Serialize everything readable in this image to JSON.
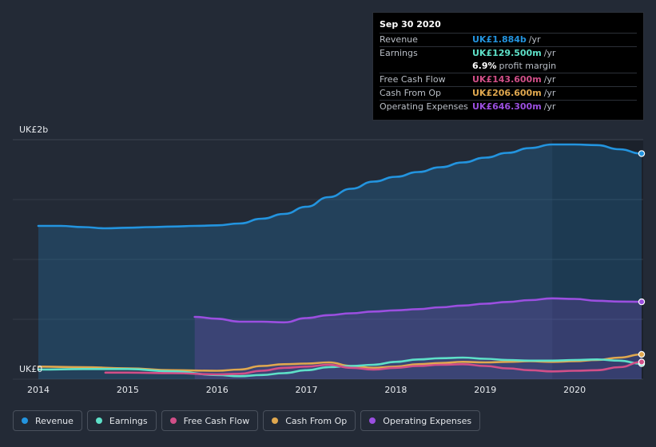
{
  "colors": {
    "revenue": "#2394df",
    "earnings": "#5ee0c8",
    "free_cash_flow": "#d14f88",
    "cash_from_op": "#e0a84f",
    "operating_expenses": "#9b4fe0"
  },
  "tooltip": {
    "date": "Sep 30 2020",
    "rows": [
      {
        "label": "Revenue",
        "value": "UK£1.884b",
        "unit": "/yr",
        "color": "#2394df"
      },
      {
        "label": "Earnings",
        "value": "UK£129.500m",
        "unit": "/yr",
        "color": "#5ee0c8"
      },
      {
        "label": "",
        "value": "6.9%",
        "unit": "profit margin",
        "color": "#ffffff"
      },
      {
        "label": "Free Cash Flow",
        "value": "UK£143.600m",
        "unit": "/yr",
        "color": "#d14f88"
      },
      {
        "label": "Cash From Op",
        "value": "UK£206.600m",
        "unit": "/yr",
        "color": "#e0a84f"
      },
      {
        "label": "Operating Expenses",
        "value": "UK£646.300m",
        "unit": "/yr",
        "color": "#9b4fe0"
      }
    ]
  },
  "legend": [
    {
      "label": "Revenue",
      "color": "#2394df"
    },
    {
      "label": "Earnings",
      "color": "#5ee0c8"
    },
    {
      "label": "Free Cash Flow",
      "color": "#d14f88"
    },
    {
      "label": "Cash From Op",
      "color": "#e0a84f"
    },
    {
      "label": "Operating Expenses",
      "color": "#9b4fe0"
    }
  ],
  "chart_data": {
    "type": "area",
    "title": "",
    "xlabel": "",
    "ylabel": "",
    "y_unit_label_top": "UK£2b",
    "y_unit_label_bottom": "UK£0",
    "ylim": [
      0,
      2.0
    ],
    "xlim": [
      2014.0,
      2020.75
    ],
    "x_ticks": [
      2014,
      2015,
      2016,
      2017,
      2018,
      2019,
      2020
    ],
    "x_tick_labels": [
      "2014",
      "2015",
      "2016",
      "2017",
      "2018",
      "2019",
      "2020"
    ],
    "highlight_from": 2019.75,
    "series": [
      {
        "name": "Revenue",
        "key": "revenue",
        "filled": true,
        "points": [
          [
            2014.0,
            1.28
          ],
          [
            2014.25,
            1.28
          ],
          [
            2014.5,
            1.27
          ],
          [
            2014.75,
            1.26
          ],
          [
            2015.0,
            1.265
          ],
          [
            2015.25,
            1.27
          ],
          [
            2015.5,
            1.275
          ],
          [
            2015.75,
            1.28
          ],
          [
            2016.0,
            1.285
          ],
          [
            2016.25,
            1.3
          ],
          [
            2016.5,
            1.34
          ],
          [
            2016.75,
            1.38
          ],
          [
            2017.0,
            1.44
          ],
          [
            2017.25,
            1.52
          ],
          [
            2017.5,
            1.59
          ],
          [
            2017.75,
            1.65
          ],
          [
            2018.0,
            1.69
          ],
          [
            2018.25,
            1.73
          ],
          [
            2018.5,
            1.77
          ],
          [
            2018.75,
            1.81
          ],
          [
            2019.0,
            1.85
          ],
          [
            2019.25,
            1.89
          ],
          [
            2019.5,
            1.93
          ],
          [
            2019.75,
            1.96
          ],
          [
            2020.0,
            1.96
          ],
          [
            2020.25,
            1.955
          ],
          [
            2020.5,
            1.92
          ],
          [
            2020.75,
            1.884
          ]
        ]
      },
      {
        "name": "Operating Expenses",
        "key": "operating_expenses",
        "filled": true,
        "points": [
          [
            2015.75,
            0.52
          ],
          [
            2016.0,
            0.505
          ],
          [
            2016.25,
            0.48
          ],
          [
            2016.5,
            0.48
          ],
          [
            2016.75,
            0.475
          ],
          [
            2017.0,
            0.51
          ],
          [
            2017.25,
            0.535
          ],
          [
            2017.5,
            0.55
          ],
          [
            2017.75,
            0.565
          ],
          [
            2018.0,
            0.575
          ],
          [
            2018.25,
            0.585
          ],
          [
            2018.5,
            0.6
          ],
          [
            2018.75,
            0.615
          ],
          [
            2019.0,
            0.63
          ],
          [
            2019.25,
            0.645
          ],
          [
            2019.5,
            0.66
          ],
          [
            2019.75,
            0.675
          ],
          [
            2020.0,
            0.67
          ],
          [
            2020.25,
            0.655
          ],
          [
            2020.5,
            0.648
          ],
          [
            2020.75,
            0.646
          ]
        ]
      },
      {
        "name": "Cash From Op",
        "key": "cash_from_op",
        "filled": false,
        "points": [
          [
            2014.0,
            0.105
          ],
          [
            2014.5,
            0.1
          ],
          [
            2015.0,
            0.09
          ],
          [
            2015.5,
            0.075
          ],
          [
            2016.0,
            0.07
          ],
          [
            2016.25,
            0.08
          ],
          [
            2016.5,
            0.11
          ],
          [
            2016.75,
            0.125
          ],
          [
            2017.0,
            0.13
          ],
          [
            2017.25,
            0.14
          ],
          [
            2017.5,
            0.11
          ],
          [
            2017.75,
            0.095
          ],
          [
            2018.0,
            0.105
          ],
          [
            2018.25,
            0.125
          ],
          [
            2018.5,
            0.135
          ],
          [
            2018.75,
            0.145
          ],
          [
            2019.0,
            0.14
          ],
          [
            2019.25,
            0.145
          ],
          [
            2019.5,
            0.15
          ],
          [
            2019.75,
            0.145
          ],
          [
            2020.0,
            0.15
          ],
          [
            2020.25,
            0.16
          ],
          [
            2020.5,
            0.18
          ],
          [
            2020.75,
            0.2066
          ]
        ]
      },
      {
        "name": "Earnings",
        "key": "earnings",
        "filled": false,
        "points": [
          [
            2014.0,
            0.08
          ],
          [
            2014.5,
            0.085
          ],
          [
            2015.0,
            0.085
          ],
          [
            2015.5,
            0.065
          ],
          [
            2016.0,
            0.035
          ],
          [
            2016.25,
            0.025
          ],
          [
            2016.5,
            0.035
          ],
          [
            2016.75,
            0.05
          ],
          [
            2017.0,
            0.075
          ],
          [
            2017.25,
            0.1
          ],
          [
            2017.5,
            0.11
          ],
          [
            2017.75,
            0.12
          ],
          [
            2018.0,
            0.145
          ],
          [
            2018.25,
            0.165
          ],
          [
            2018.5,
            0.175
          ],
          [
            2018.75,
            0.18
          ],
          [
            2019.0,
            0.17
          ],
          [
            2019.25,
            0.16
          ],
          [
            2019.5,
            0.155
          ],
          [
            2019.75,
            0.155
          ],
          [
            2020.0,
            0.16
          ],
          [
            2020.25,
            0.165
          ],
          [
            2020.5,
            0.155
          ],
          [
            2020.75,
            0.1295
          ]
        ]
      },
      {
        "name": "Free Cash Flow",
        "key": "free_cash_flow",
        "filled": false,
        "points": [
          [
            2014.75,
            0.055
          ],
          [
            2015.0,
            0.055
          ],
          [
            2015.5,
            0.05
          ],
          [
            2016.0,
            0.04
          ],
          [
            2016.25,
            0.045
          ],
          [
            2016.5,
            0.07
          ],
          [
            2016.75,
            0.095
          ],
          [
            2017.0,
            0.105
          ],
          [
            2017.25,
            0.12
          ],
          [
            2017.5,
            0.095
          ],
          [
            2017.75,
            0.08
          ],
          [
            2018.0,
            0.095
          ],
          [
            2018.25,
            0.11
          ],
          [
            2018.5,
            0.12
          ],
          [
            2018.75,
            0.125
          ],
          [
            2019.0,
            0.11
          ],
          [
            2019.25,
            0.09
          ],
          [
            2019.5,
            0.075
          ],
          [
            2019.75,
            0.065
          ],
          [
            2020.0,
            0.07
          ],
          [
            2020.25,
            0.075
          ],
          [
            2020.5,
            0.1
          ],
          [
            2020.75,
            0.1436
          ]
        ]
      }
    ]
  }
}
